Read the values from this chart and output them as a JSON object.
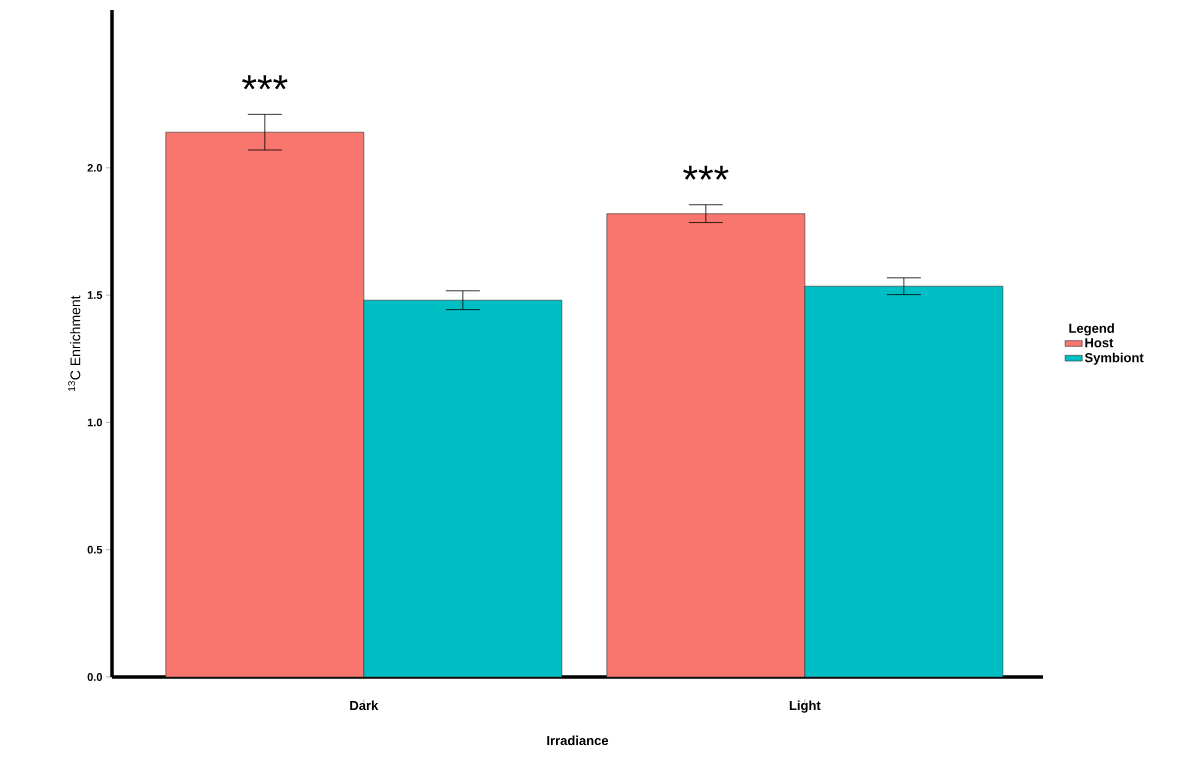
{
  "chart_data": {
    "type": "bar",
    "xlabel": "Irradiance",
    "ylabel": "$^{13}$C Enrichment",
    "legend_title": "Legend",
    "categories": [
      "Dark",
      "Light"
    ],
    "series": [
      {
        "name": "Host",
        "color": "#f8766d",
        "values": [
          2.14,
          1.82
        ],
        "errors": [
          0.07,
          0.035
        ]
      },
      {
        "name": "Symbiont",
        "color": "#00bfc4",
        "values": [
          1.48,
          1.535
        ],
        "errors": [
          0.037,
          0.033
        ]
      }
    ],
    "ylim": [
      0,
      2.62
    ],
    "yticks": [
      {
        "value": 0,
        "label": "0.0"
      },
      {
        "value": 0.5,
        "label": "0.5"
      },
      {
        "value": 1,
        "label": "1.0"
      },
      {
        "value": 1.5,
        "label": "1.5"
      },
      {
        "value": 2,
        "label": "2.0"
      }
    ],
    "annotations": [
      "***",
      "***"
    ],
    "legend": "right",
    "grid": false
  }
}
